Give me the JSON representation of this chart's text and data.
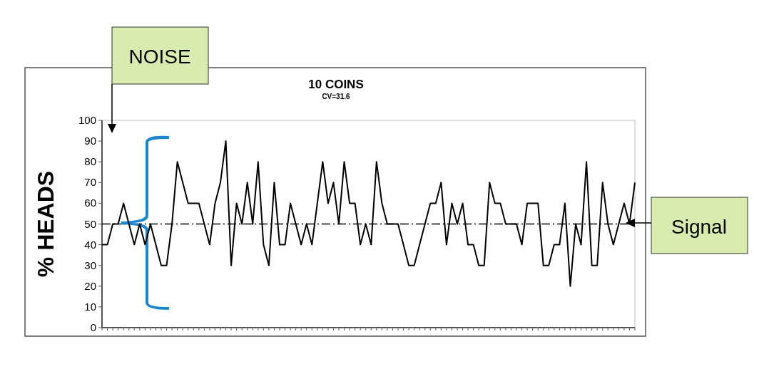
{
  "chart_data": {
    "type": "line",
    "title": "10 COINS",
    "subtitle": "CV=31.6",
    "ylabel": "% HEADS",
    "categories": [
      null,
      null,
      null,
      null,
      null,
      null,
      null,
      null,
      null,
      null,
      null,
      null,
      null,
      null,
      null,
      null,
      null,
      null,
      null,
      null,
      null,
      null,
      null,
      null,
      null,
      null,
      null,
      null,
      null,
      null,
      null,
      null,
      null,
      null,
      null,
      null,
      null,
      null,
      null,
      null,
      null,
      null,
      null,
      null,
      null,
      null,
      null,
      null,
      null,
      null,
      null,
      null,
      null,
      null,
      null,
      null,
      null,
      null,
      null,
      null,
      null,
      null,
      null,
      null,
      null,
      null,
      null,
      null,
      null,
      null,
      null,
      null,
      null,
      null,
      null,
      null,
      null,
      null,
      null,
      null,
      null,
      null,
      null,
      null,
      null,
      null,
      null,
      null,
      null,
      null,
      null,
      null,
      null,
      null,
      null,
      null,
      null,
      null,
      null,
      null
    ],
    "series": [
      {
        "color": "#000000",
        "values": [
          40,
          40,
          50,
          50,
          60,
          50,
          40,
          50,
          40,
          50,
          40,
          30,
          30,
          50,
          80,
          70,
          60,
          60,
          60,
          50,
          40,
          60,
          70,
          90,
          30,
          60,
          50,
          70,
          50,
          80,
          40,
          30,
          70,
          40,
          40,
          60,
          50,
          40,
          50,
          40,
          60,
          80,
          60,
          70,
          50,
          80,
          60,
          60,
          40,
          50,
          40,
          80,
          60,
          50,
          50,
          50,
          40,
          30,
          30,
          40,
          50,
          60,
          60,
          70,
          40,
          60,
          50,
          60,
          40,
          40,
          30,
          30,
          70,
          60,
          60,
          50,
          50,
          50,
          40,
          60,
          60,
          60,
          30,
          30,
          40,
          40,
          60,
          20,
          50,
          40,
          80,
          30,
          30,
          70,
          50,
          40,
          50,
          60,
          50,
          70
        ]
      }
    ],
    "ylim": [
      0,
      100
    ],
    "yticks": [
      0,
      10,
      20,
      30,
      40,
      50,
      60,
      70,
      80,
      90,
      100
    ],
    "ref_lines": [
      {
        "axis": "y",
        "value": 50,
        "color": "#000000",
        "line_style": "dashdot"
      }
    ],
    "grid": false,
    "line_style": "solid",
    "annotations": [
      "NOISE",
      "Signal"
    ]
  }
}
